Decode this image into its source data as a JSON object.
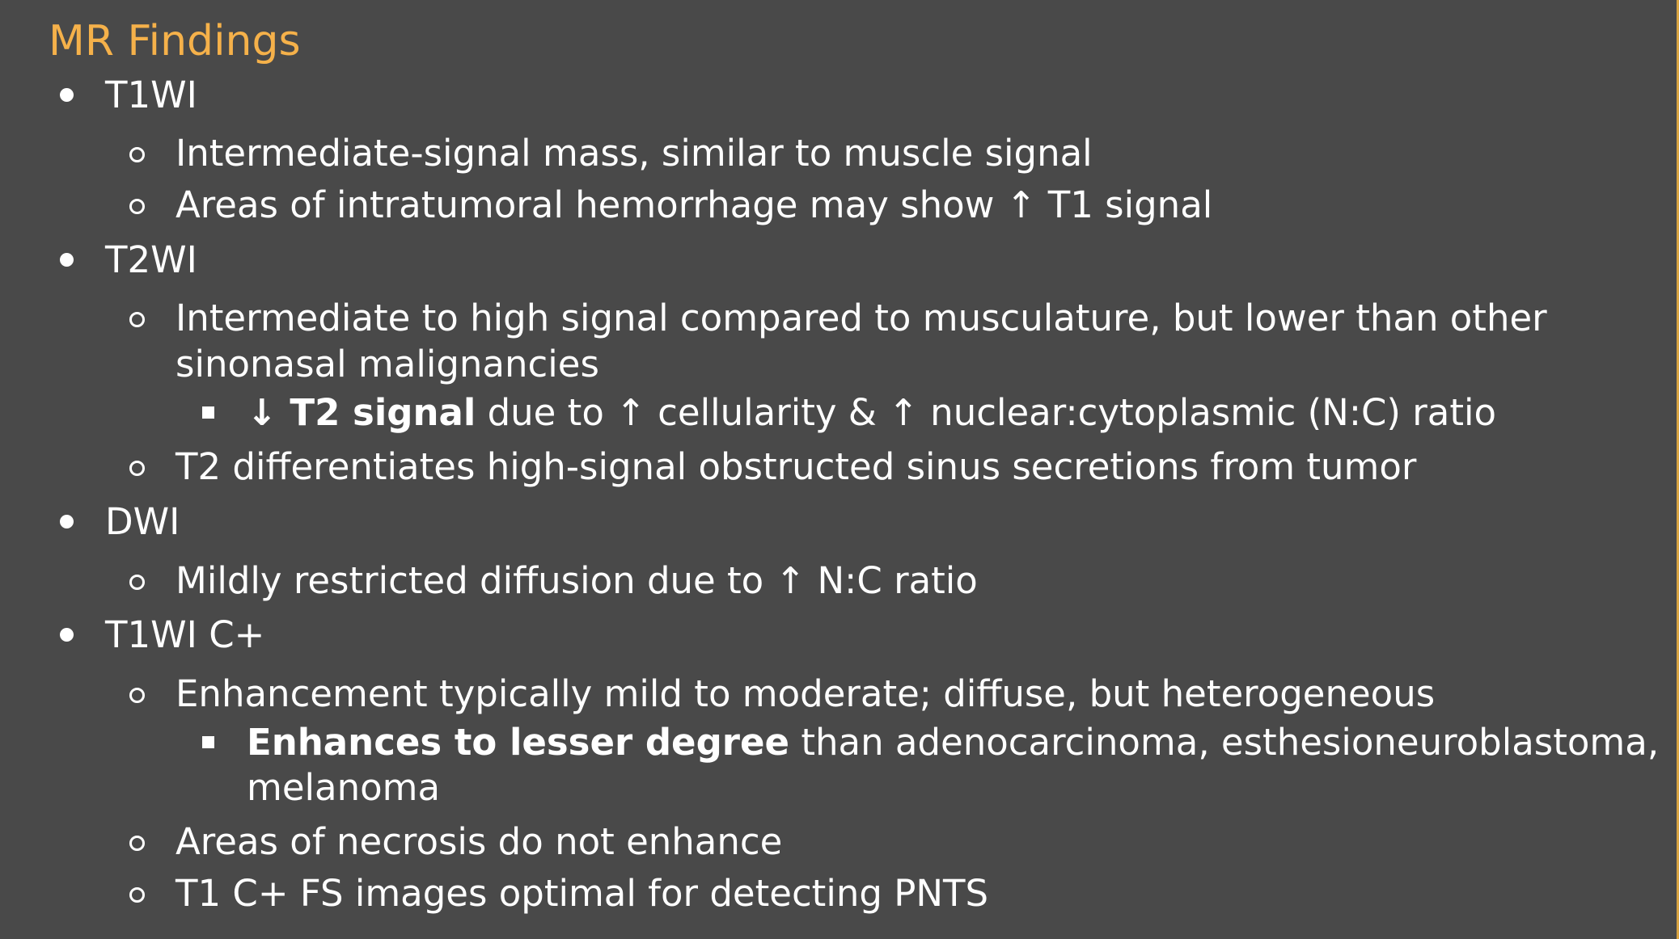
{
  "title": "MR Findings",
  "bullets": {
    "t1wi": {
      "label": "T1WI",
      "sub1": "Intermediate-signal mass, similar to muscle signal",
      "sub2": "Areas of intratumoral hemorrhage may show ↑ T1 signal"
    },
    "t2wi": {
      "label": "T2WI",
      "sub1_line1": "Intermediate to high signal compared to musculature, but lower than other",
      "sub1_line2": "sinonasal malignancies",
      "sub1_detail_bold": "↓ T2 signal",
      "sub1_detail_rest": " due to ↑ cellularity & ↑ nuclear:cytoplasmic (N:C) ratio",
      "sub2": "T2 differentiates high-signal obstructed sinus secretions from tumor"
    },
    "dwi": {
      "label": "DWI",
      "sub1": "Mildly restricted diffusion due to ↑ N:C ratio"
    },
    "t1wic": {
      "label": "T1WI C+",
      "sub1": "Enhancement typically mild to moderate; diffuse, but heterogeneous",
      "sub1_detail_bold": "Enhances to lesser degree",
      "sub1_detail_rest": " than adenocarcinoma, esthesioneuroblastoma,",
      "sub1_detail_line2": "melanoma",
      "sub2": "Areas of necrosis do not enhance",
      "sub3": "T1 C+ FS images optimal for detecting PNTS"
    }
  }
}
